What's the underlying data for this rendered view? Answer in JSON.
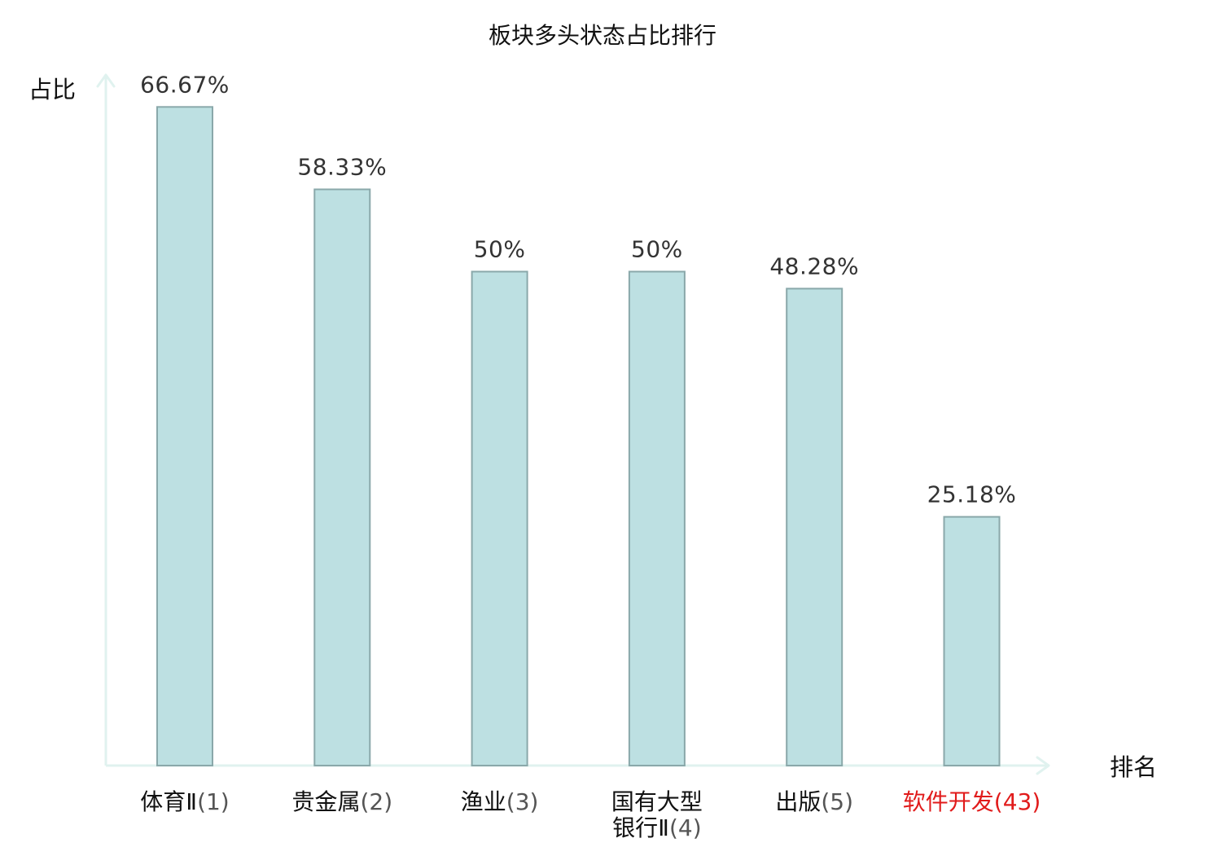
{
  "chart_data": {
    "type": "bar",
    "title": "板块多头状态占比排行",
    "ylabel": "占比",
    "xlabel": "排名",
    "ylim": [
      0,
      70
    ],
    "grid": false,
    "unit": "%",
    "categories": [
      {
        "name": "体育Ⅱ",
        "rank": "(1)",
        "value": 66.67,
        "label": "66.67%",
        "highlight": false
      },
      {
        "name": "贵金属",
        "rank": "(2)",
        "value": 58.33,
        "label": "58.33%",
        "highlight": false
      },
      {
        "name": "渔业",
        "rank": "(3)",
        "value": 50,
        "label": "50%",
        "highlight": false
      },
      {
        "name": [
          "国有大型",
          "银行Ⅱ"
        ],
        "rank": "(4)",
        "value": 50,
        "label": "50%",
        "highlight": false
      },
      {
        "name": "出版",
        "rank": "(5)",
        "value": 48.28,
        "label": "48.28%",
        "highlight": false
      },
      {
        "name": "软件开发",
        "rank": "(43)",
        "value": 25.18,
        "label": "25.18%",
        "highlight": true
      }
    ],
    "colors": {
      "bar_fill": "#bde0e2",
      "bar_stroke": "#8aa8aa",
      "axis": "#e0f2ef",
      "highlight": "#e11b1b"
    }
  }
}
